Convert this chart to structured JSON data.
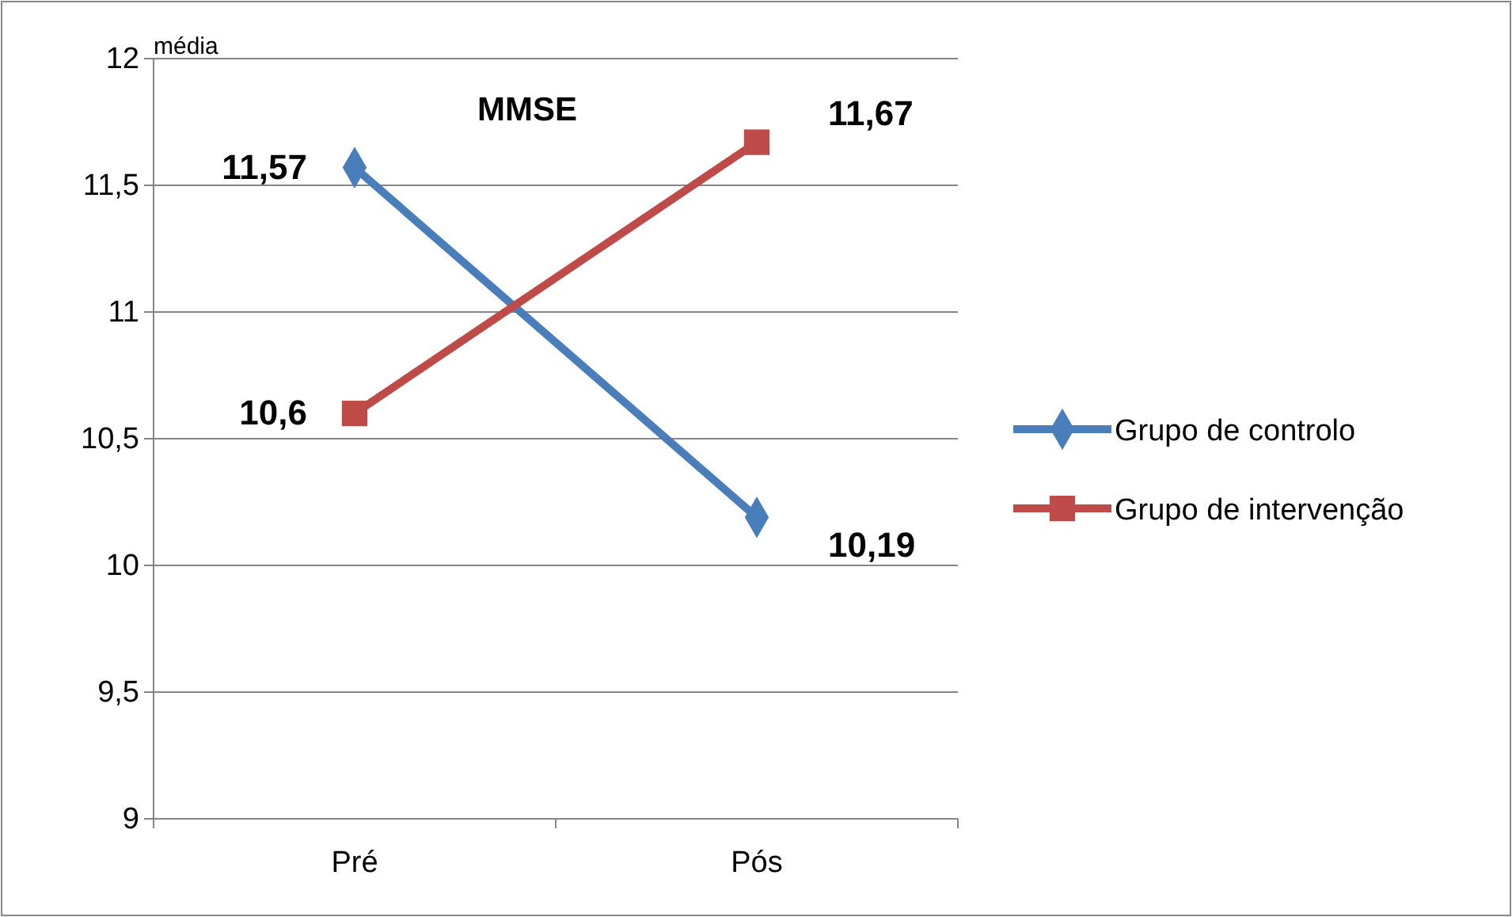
{
  "chart_data": {
    "type": "line",
    "title": "MMSE",
    "ylabel": "média",
    "categories": [
      "Pré",
      "Pós"
    ],
    "ylim": [
      9,
      12
    ],
    "yticks": [
      9,
      {
        "value": 9.5,
        "label": "9,5"
      },
      10,
      {
        "value": 10.5,
        "label": "10,5"
      },
      11,
      {
        "value": 11.5,
        "label": "11,5"
      },
      12
    ],
    "grid": "y",
    "legend": "right",
    "series": [
      {
        "name": "Grupo de controlo",
        "color": "#4a7ebb",
        "values": [
          11.57,
          10.19
        ],
        "marker": "diamond",
        "value_labels": [
          "11,57",
          "10,19"
        ]
      },
      {
        "name": "Grupo de intervenção",
        "color": "#be4b48",
        "values": [
          10.6,
          11.67
        ],
        "marker": "square",
        "value_labels": [
          "10,6",
          "11,67"
        ]
      }
    ]
  }
}
